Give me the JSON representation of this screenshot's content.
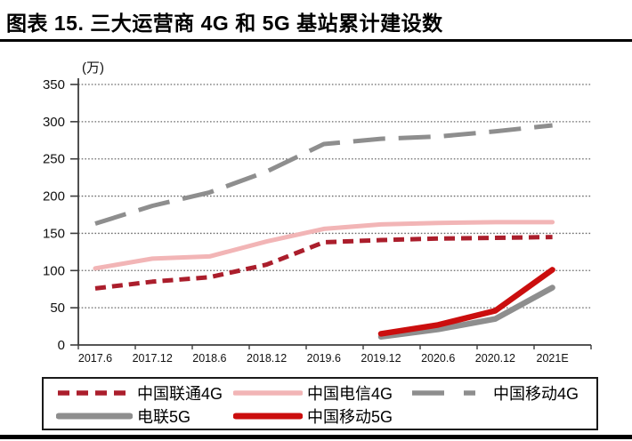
{
  "figure": {
    "number_label": "图表 15.",
    "title": "图表 15. 三大运营商 4G 和 5G 基站累计建设数"
  },
  "chart_data": {
    "type": "line",
    "title": "三大运营商 4G 和 5G 基站累计建设数",
    "unit": "(万)",
    "categories": [
      "2017.6",
      "2017.12",
      "2018.6",
      "2018.12",
      "2019.6",
      "2019.12",
      "2020.6",
      "2020.12",
      "2021E"
    ],
    "y_ticks": [
      0,
      50,
      100,
      150,
      200,
      250,
      300,
      350
    ],
    "ylim": [
      0,
      350
    ],
    "grid": "horizontal-dotted",
    "legend_position": "bottom-boxed",
    "series": [
      {
        "name": "中国联通4G",
        "line_style": "dashed",
        "color": "#ab1e2c",
        "values": [
          76,
          85,
          91,
          108,
          138,
          141,
          143,
          144,
          145
        ]
      },
      {
        "name": "中国电信4G",
        "line_style": "solid",
        "color": "#f2b5b6",
        "values": [
          103,
          116,
          119,
          139,
          156,
          162,
          164,
          165,
          165
        ]
      },
      {
        "name": "中国移动4G",
        "line_style": "long-dashed",
        "color": "#8e8e8e",
        "values": [
          163,
          187,
          205,
          233,
          270,
          277,
          280,
          287,
          295
        ]
      },
      {
        "name": "电联5G",
        "line_style": "solid-thick",
        "color": "#8e8e8e",
        "values": [
          null,
          null,
          null,
          null,
          null,
          11,
          21,
          35,
          77
        ]
      },
      {
        "name": "中国移动5G",
        "line_style": "solid-thick",
        "color": "#cb0e0e",
        "values": [
          null,
          null,
          null,
          null,
          null,
          15,
          27,
          46,
          101
        ]
      }
    ]
  }
}
